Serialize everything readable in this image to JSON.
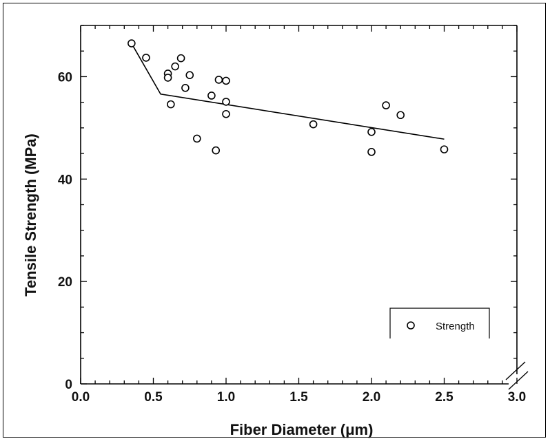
{
  "chart_data": {
    "type": "scatter",
    "xlabel": "Fiber Diameter (μm)",
    "ylabel": "Tensile Strength (MPa)",
    "xlim": [
      0.0,
      3.0
    ],
    "ylim": [
      0,
      70
    ],
    "x_ticks": [
      "0.0",
      "0.5",
      "1.0",
      "1.5",
      "2.0",
      "2.5",
      "3.0"
    ],
    "y_ticks": [
      "0",
      "20",
      "40",
      "60"
    ],
    "grid": false,
    "legend_position": "bottom-right",
    "axis_break": "bottom-right",
    "series": [
      {
        "name": "Strength",
        "marker": "open-circle",
        "points": [
          [
            0.35,
            66.5
          ],
          [
            0.45,
            63.7
          ],
          [
            0.6,
            60.6
          ],
          [
            0.6,
            59.8
          ],
          [
            0.62,
            54.6
          ],
          [
            0.65,
            62.0
          ],
          [
            0.69,
            63.6
          ],
          [
            0.72,
            57.8
          ],
          [
            0.75,
            60.3
          ],
          [
            0.8,
            47.9
          ],
          [
            0.9,
            56.3
          ],
          [
            0.93,
            45.6
          ],
          [
            0.95,
            59.4
          ],
          [
            1.0,
            59.2
          ],
          [
            1.0,
            55.1
          ],
          [
            1.0,
            52.7
          ],
          [
            1.6,
            50.7
          ],
          [
            2.0,
            49.2
          ],
          [
            2.0,
            45.3
          ],
          [
            2.1,
            54.4
          ],
          [
            2.2,
            52.5
          ],
          [
            2.5,
            45.8
          ]
        ]
      }
    ],
    "fit_line": {
      "points": [
        [
          0.35,
          66.5
        ],
        [
          0.55,
          56.6
        ],
        [
          2.5,
          47.8
        ]
      ]
    }
  }
}
